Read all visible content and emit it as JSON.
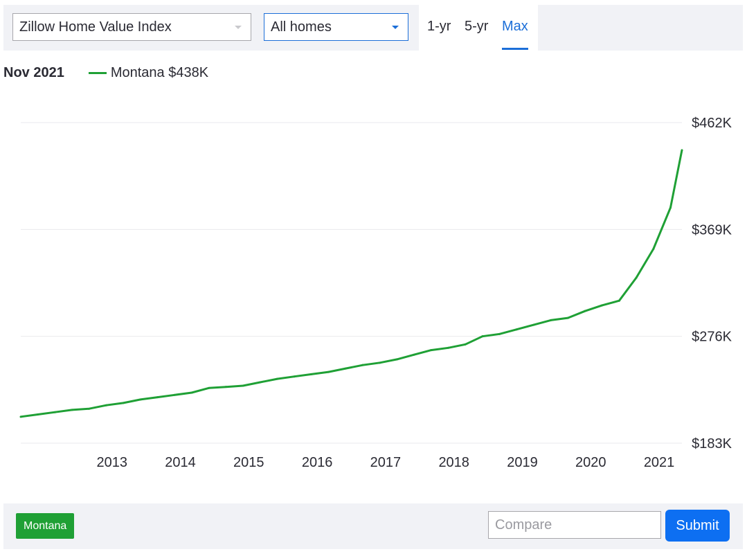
{
  "controls": {
    "metric_select": "Zillow Home Value Index",
    "home_type_select": "All homes",
    "range_tabs": [
      "1-yr",
      "5-yr",
      "Max"
    ],
    "active_range": "Max"
  },
  "legend": {
    "date": "Nov 2021",
    "series_label": "Montana $438K"
  },
  "footer": {
    "chip_label": "Montana",
    "compare_placeholder": "Compare",
    "submit_label": "Submit"
  },
  "colors": {
    "series": "#1fa035",
    "accent": "#1b6ed8",
    "submit": "#0d6ff2"
  },
  "chart_data": {
    "type": "line",
    "title": "",
    "xlabel": "",
    "ylabel": "",
    "x_ticks": [
      "2013",
      "2014",
      "2015",
      "2016",
      "2017",
      "2018",
      "2019",
      "2020",
      "2021"
    ],
    "y_ticks": [
      "$183K",
      "$276K",
      "$369K",
      "$462K"
    ],
    "ylim": [
      183,
      462
    ],
    "xlim": [
      "2012-03",
      "2021-11"
    ],
    "grid": true,
    "series": [
      {
        "name": "Montana",
        "x": [
          "2012-03",
          "2012-06",
          "2012-09",
          "2012-12",
          "2013-03",
          "2013-06",
          "2013-09",
          "2013-12",
          "2014-03",
          "2014-06",
          "2014-09",
          "2014-12",
          "2015-03",
          "2015-06",
          "2015-09",
          "2015-12",
          "2016-03",
          "2016-06",
          "2016-09",
          "2016-12",
          "2017-03",
          "2017-06",
          "2017-09",
          "2017-12",
          "2018-03",
          "2018-06",
          "2018-09",
          "2018-12",
          "2019-03",
          "2019-06",
          "2019-09",
          "2019-12",
          "2020-03",
          "2020-06",
          "2020-09",
          "2020-12",
          "2021-03",
          "2021-06",
          "2021-09",
          "2021-11"
        ],
        "values": [
          206,
          208,
          210,
          212,
          213,
          216,
          218,
          221,
          223,
          225,
          227,
          231,
          232,
          233,
          236,
          239,
          241,
          243,
          245,
          248,
          251,
          253,
          256,
          260,
          264,
          266,
          269,
          276,
          278,
          282,
          286,
          290,
          292,
          298,
          303,
          307,
          327,
          352,
          388,
          438
        ]
      }
    ]
  }
}
